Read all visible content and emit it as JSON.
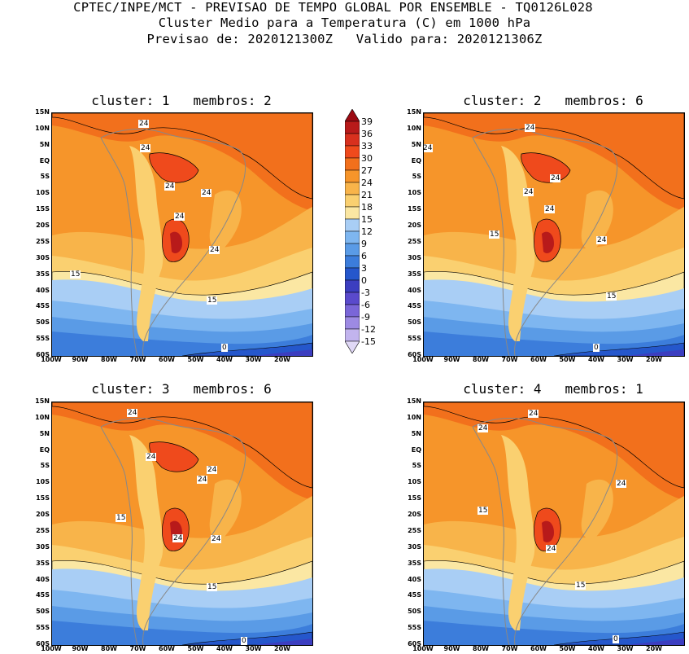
{
  "header": {
    "line1": "CPTEC/INPE/MCT - PREVISAO DE TEMPO GLOBAL POR ENSEMBLE - TQ0126L028",
    "line2": "Cluster Medio para a Temperatura (C) em 1000 hPa",
    "line3": "Previsao de: 2020121300Z   Valido para: 2020121306Z"
  },
  "lat_labels": [
    "15N",
    "10N",
    "5N",
    "EQ",
    "5S",
    "10S",
    "15S",
    "20S",
    "25S",
    "30S",
    "35S",
    "40S",
    "45S",
    "50S",
    "55S",
    "60S"
  ],
  "lon_labels": [
    "100W",
    "90W",
    "80W",
    "70W",
    "60W",
    "50W",
    "40W",
    "30W",
    "20W"
  ],
  "colorbar": {
    "labels": [
      "39",
      "36",
      "33",
      "30",
      "27",
      "24",
      "21",
      "18",
      "15",
      "12",
      "9",
      "6",
      "3",
      "0",
      "-3",
      "-6",
      "-9",
      "-12",
      "-15"
    ],
    "colors": [
      "#9c0a12",
      "#b81a1a",
      "#d8301e",
      "#ef4a1c",
      "#f2701c",
      "#f6952a",
      "#f8b44a",
      "#fad070",
      "#fbe7a3",
      "#a9cef5",
      "#7eb6f0",
      "#5a9be6",
      "#3c7ddb",
      "#2557cc",
      "#3c3ec0",
      "#5a4acc",
      "#7a66d8",
      "#9d8ae3",
      "#c2b4ee",
      "#e0d8f6"
    ]
  },
  "panels": [
    {
      "title": "cluster: 1   membros: 2",
      "contour_labels": [
        {
          "text": "24",
          "key": "a"
        },
        {
          "text": "24",
          "key": "b"
        },
        {
          "text": "24",
          "key": "c"
        },
        {
          "text": "24",
          "key": "d"
        },
        {
          "text": "24",
          "key": "e"
        },
        {
          "text": "24",
          "key": "f"
        },
        {
          "text": "15",
          "key": "g"
        },
        {
          "text": "15",
          "key": "h"
        },
        {
          "text": "0",
          "key": "i"
        }
      ]
    },
    {
      "title": "cluster: 2   membros: 6",
      "contour_labels": [
        {
          "text": "24",
          "key": "a"
        },
        {
          "text": "24",
          "key": "b"
        },
        {
          "text": "24",
          "key": "c"
        },
        {
          "text": "24",
          "key": "d"
        },
        {
          "text": "24",
          "key": "e"
        },
        {
          "text": "24",
          "key": "f"
        },
        {
          "text": "15",
          "key": "g"
        },
        {
          "text": "15",
          "key": "h"
        },
        {
          "text": "0",
          "key": "i"
        }
      ]
    },
    {
      "title": "cluster: 3   membros: 6",
      "contour_labels": [
        {
          "text": "24",
          "key": "a"
        },
        {
          "text": "24",
          "key": "b"
        },
        {
          "text": "24",
          "key": "c"
        },
        {
          "text": "24",
          "key": "d"
        },
        {
          "text": "24",
          "key": "e"
        },
        {
          "text": "24",
          "key": "f"
        },
        {
          "text": "15",
          "key": "g"
        },
        {
          "text": "15",
          "key": "h"
        },
        {
          "text": "0",
          "key": "i"
        }
      ]
    },
    {
      "title": "cluster: 4   membros: 1",
      "contour_labels": [
        {
          "text": "24",
          "key": "a"
        },
        {
          "text": "24",
          "key": "b"
        },
        {
          "text": "24",
          "key": "c"
        },
        {
          "text": "24",
          "key": "d"
        },
        {
          "text": "15",
          "key": "g"
        },
        {
          "text": "15",
          "key": "h"
        },
        {
          "text": "0",
          "key": "i"
        }
      ]
    }
  ]
}
